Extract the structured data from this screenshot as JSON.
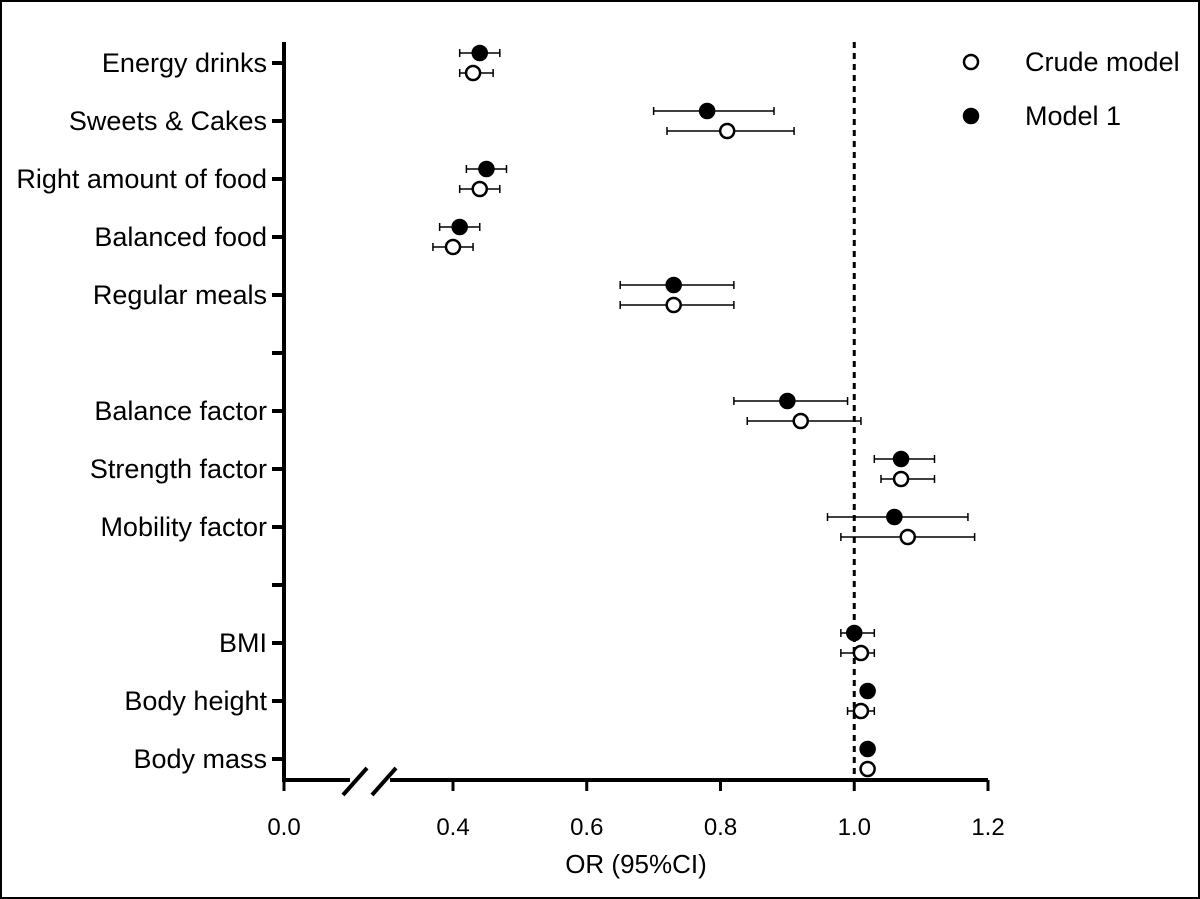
{
  "chart_data": {
    "type": "forest",
    "xlabel": "OR (95%CI)",
    "xlim": [
      0.0,
      1.2
    ],
    "x_ticks": [
      "0.0",
      "0.4",
      "0.6",
      "0.8",
      "1.0",
      "1.2"
    ],
    "axis_break": "between 0.0 and 0.4",
    "reference_line": 1.0,
    "legend": {
      "position": "top-right",
      "entries": [
        "Crude model",
        "Model 1"
      ]
    },
    "rows": [
      {
        "label": "Energy drinks",
        "model1": {
          "or": 0.44,
          "lo": 0.41,
          "hi": 0.47
        },
        "crude": {
          "or": 0.43,
          "lo": 0.41,
          "hi": 0.46
        }
      },
      {
        "label": "Sweets & Cakes",
        "model1": {
          "or": 0.78,
          "lo": 0.7,
          "hi": 0.88
        },
        "crude": {
          "or": 0.81,
          "lo": 0.72,
          "hi": 0.91
        }
      },
      {
        "label": "Right amount of food",
        "model1": {
          "or": 0.45,
          "lo": 0.42,
          "hi": 0.48
        },
        "crude": {
          "or": 0.44,
          "lo": 0.41,
          "hi": 0.47
        }
      },
      {
        "label": "Balanced food",
        "model1": {
          "or": 0.41,
          "lo": 0.38,
          "hi": 0.44
        },
        "crude": {
          "or": 0.4,
          "lo": 0.37,
          "hi": 0.43
        }
      },
      {
        "label": "Regular meals",
        "model1": {
          "or": 0.73,
          "lo": 0.65,
          "hi": 0.82
        },
        "crude": {
          "or": 0.73,
          "lo": 0.65,
          "hi": 0.82
        }
      },
      {
        "label": "",
        "model1": null,
        "crude": null
      },
      {
        "label": "Balance factor",
        "model1": {
          "or": 0.9,
          "lo": 0.82,
          "hi": 0.99
        },
        "crude": {
          "or": 0.92,
          "lo": 0.84,
          "hi": 1.01
        }
      },
      {
        "label": "Strength factor",
        "model1": {
          "or": 1.07,
          "lo": 1.03,
          "hi": 1.12
        },
        "crude": {
          "or": 1.07,
          "lo": 1.04,
          "hi": 1.12
        }
      },
      {
        "label": "Mobility factor",
        "model1": {
          "or": 1.06,
          "lo": 0.96,
          "hi": 1.17
        },
        "crude": {
          "or": 1.08,
          "lo": 0.98,
          "hi": 1.18
        }
      },
      {
        "label": "",
        "model1": null,
        "crude": null
      },
      {
        "label": "BMI",
        "model1": {
          "or": 1.0,
          "lo": 0.98,
          "hi": 1.03
        },
        "crude": {
          "or": 1.01,
          "lo": 0.98,
          "hi": 1.03
        }
      },
      {
        "label": "Body height",
        "model1": {
          "or": 1.02,
          "lo": 1.02,
          "hi": 1.02
        },
        "crude": {
          "or": 1.01,
          "lo": 0.99,
          "hi": 1.03
        }
      },
      {
        "label": "Body mass",
        "model1": {
          "or": 1.02,
          "lo": 1.02,
          "hi": 1.02
        },
        "crude": {
          "or": 1.02,
          "lo": 1.02,
          "hi": 1.02
        }
      }
    ]
  }
}
